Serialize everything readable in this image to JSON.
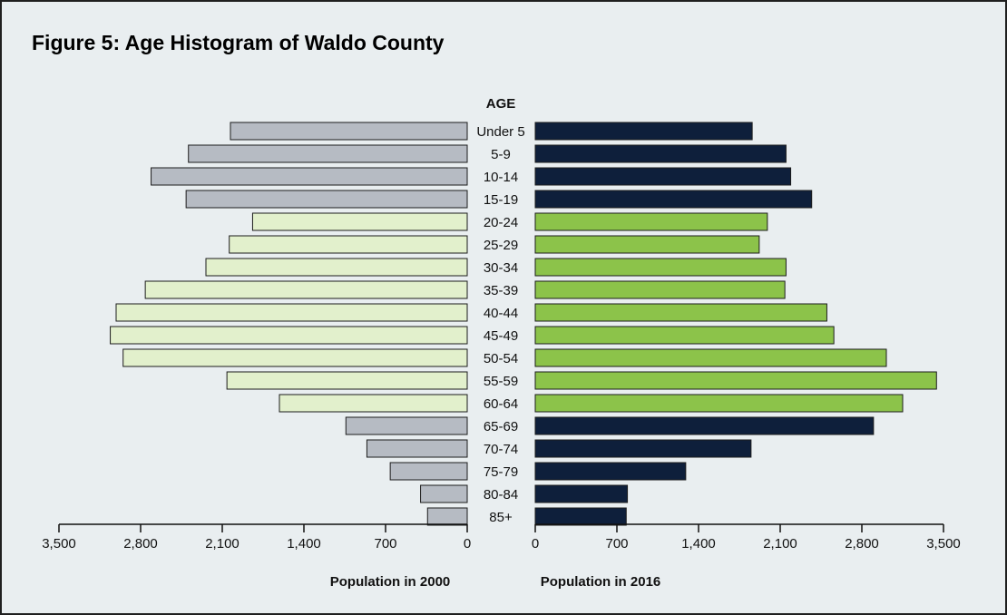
{
  "figure": {
    "title": "Figure 5: Age Histogram of Waldo County"
  },
  "colors": {
    "background": "#e9eef0",
    "left_default": "#b6bbc3",
    "left_highlight": "#e2f0cc",
    "right_default": "#0e1f3b",
    "right_highlight": "#8cc34a"
  },
  "chart_data": {
    "type": "bar",
    "orientation": "horizontal",
    "layout": "population pyramid",
    "center_label": "AGE",
    "categories": [
      "Under 5",
      "5-9",
      "10-14",
      "15-19",
      "20-24",
      "25-29",
      "30-34",
      "35-39",
      "40-44",
      "45-49",
      "50-54",
      "55-59",
      "60-64",
      "65-69",
      "70-74",
      "75-79",
      "80-84",
      "85+"
    ],
    "highlighted_categories": [
      "20-24",
      "25-29",
      "30-34",
      "35-39",
      "40-44",
      "45-49",
      "50-54",
      "55-59",
      "60-64"
    ],
    "series": [
      {
        "name": "Population in 2000",
        "side": "left",
        "values": [
          2030,
          2390,
          2710,
          2410,
          1840,
          2040,
          2240,
          2760,
          3010,
          3060,
          2950,
          2060,
          1610,
          1040,
          860,
          660,
          400,
          340
        ]
      },
      {
        "name": "Population in 2016",
        "side": "right",
        "values": [
          1860,
          2150,
          2190,
          2370,
          1990,
          1920,
          2150,
          2140,
          2500,
          2560,
          3010,
          3440,
          3150,
          2900,
          1850,
          1290,
          790,
          780
        ]
      }
    ],
    "xlabel_left": "Population in 2000",
    "xlabel_right": "Population in 2016",
    "ticks_left": [
      "3,500",
      "2,800",
      "2,100",
      "1,400",
      "700",
      "0"
    ],
    "ticks_right": [
      "0",
      "700",
      "1,400",
      "2,100",
      "2,800",
      "3,500"
    ],
    "tick_values": [
      0,
      700,
      1400,
      2100,
      2800,
      3500
    ],
    "xlim": [
      0,
      3500
    ],
    "grid": false,
    "legend": "none"
  }
}
